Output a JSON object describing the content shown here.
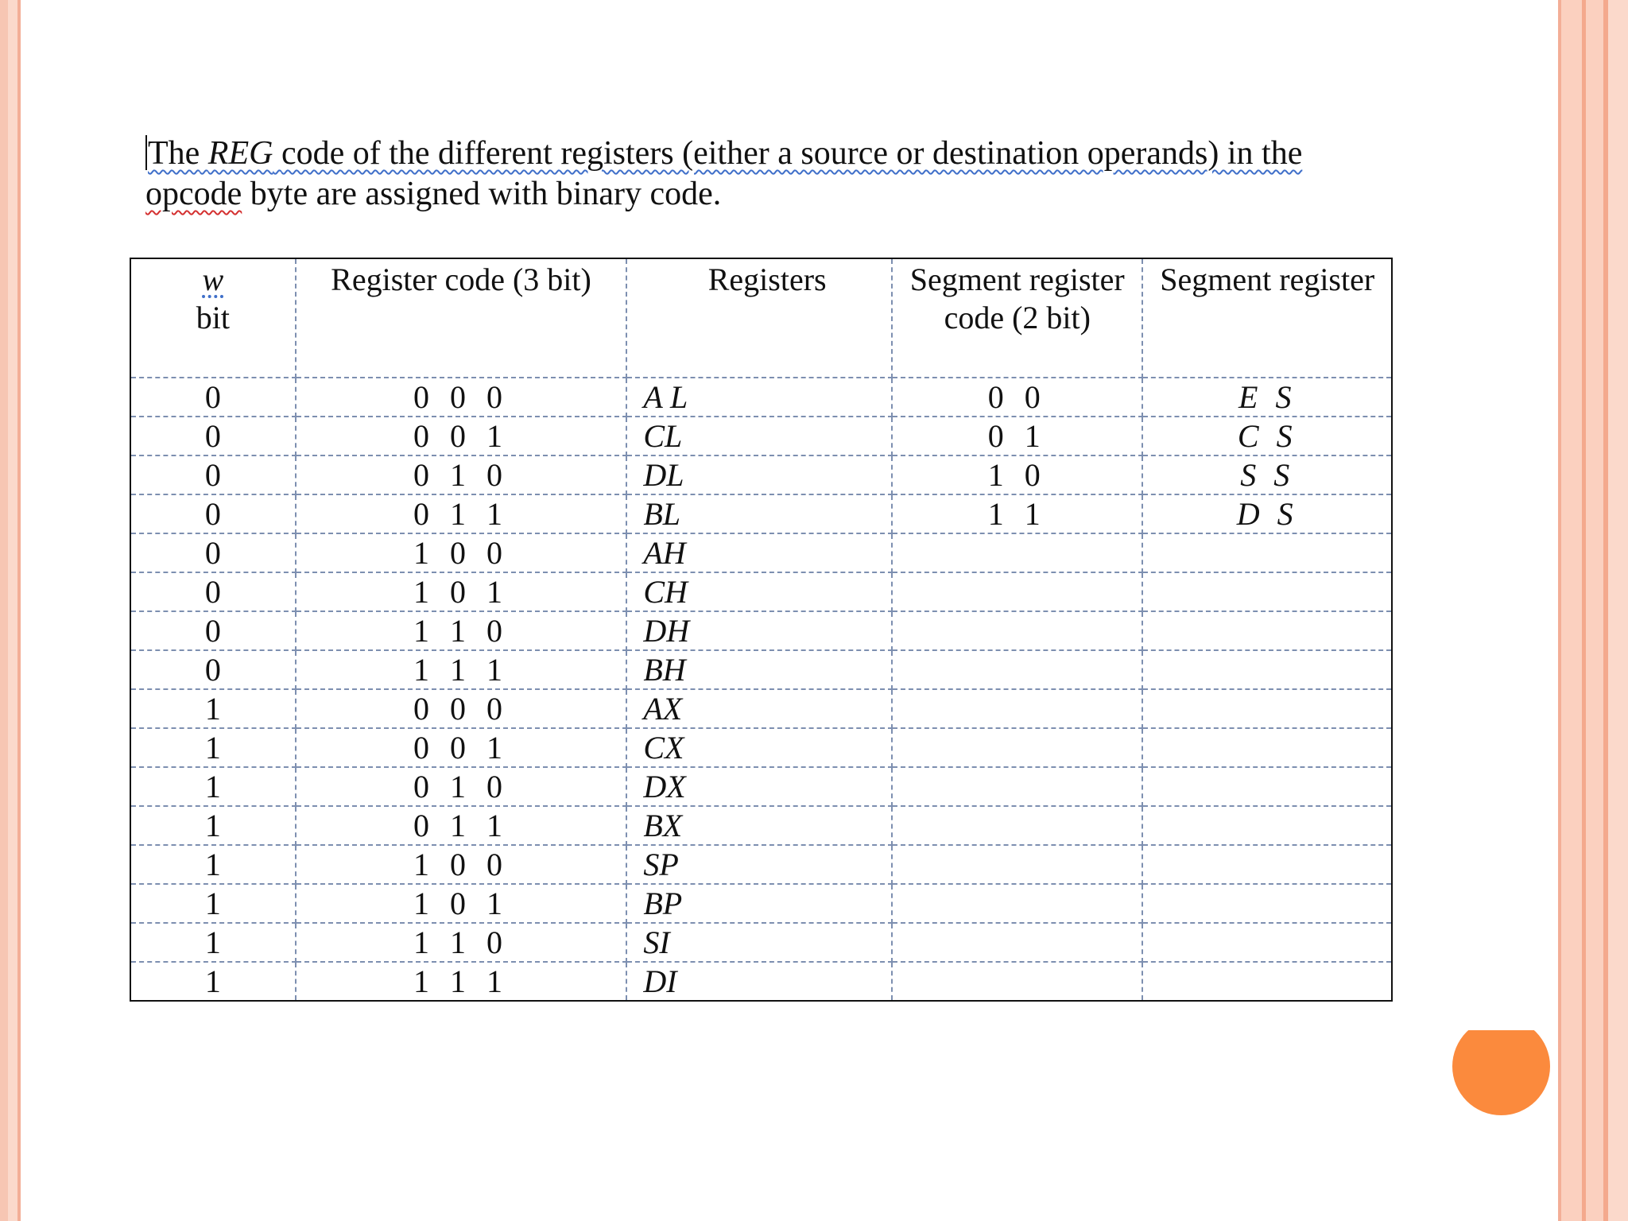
{
  "intro": {
    "word_the": "The",
    "word_reg": "REG",
    "line1_rest": "code of the different registers (either a source or destination operands) in the",
    "word_opcode": "opcode",
    "line2_rest": "byte are assigned with binary code."
  },
  "table": {
    "headers": {
      "w": "w",
      "w_suffix": "bit",
      "reg_code": "Register code (3 bit)",
      "registers": "Registers",
      "seg_code": "Segment register code (2 bit)",
      "seg_reg": "Segment register"
    },
    "rows": [
      {
        "w": "0",
        "code": "0 0 0",
        "reg": "A L",
        "seg_code": "0 0",
        "seg": "E S"
      },
      {
        "w": "0",
        "code": "0 0 1",
        "reg": "CL",
        "seg_code": "0 1",
        "seg": "C S"
      },
      {
        "w": "0",
        "code": "0 1 0",
        "reg": "DL",
        "seg_code": "1 0",
        "seg": "S S"
      },
      {
        "w": "0",
        "code": "0 1 1",
        "reg": "BL",
        "seg_code": "1 1",
        "seg": "D S"
      },
      {
        "w": "0",
        "code": "1 0 0",
        "reg": "AH",
        "seg_code": "",
        "seg": ""
      },
      {
        "w": "0",
        "code": "1 0 1",
        "reg": "CH",
        "seg_code": "",
        "seg": ""
      },
      {
        "w": "0",
        "code": "1 1 0",
        "reg": "DH",
        "seg_code": "",
        "seg": ""
      },
      {
        "w": "0",
        "code": "1 1 1",
        "reg": "BH",
        "seg_code": "",
        "seg": ""
      },
      {
        "w": "1",
        "code": "0 0 0",
        "reg": "AX",
        "seg_code": "",
        "seg": ""
      },
      {
        "w": "1",
        "code": "0 0 1",
        "reg": "CX",
        "seg_code": "",
        "seg": ""
      },
      {
        "w": "1",
        "code": "0 1 0",
        "reg": "DX",
        "seg_code": "",
        "seg": ""
      },
      {
        "w": "1",
        "code": "0 1 1",
        "reg": "BX",
        "seg_code": "",
        "seg": ""
      },
      {
        "w": "1",
        "code": "1 0 0",
        "reg": "SP",
        "seg_code": "",
        "seg": ""
      },
      {
        "w": "1",
        "code": "1 0 1",
        "reg": "BP",
        "seg_code": "",
        "seg": ""
      },
      {
        "w": "1",
        "code": "1 1 0",
        "reg": "SI",
        "seg_code": "",
        "seg": ""
      },
      {
        "w": "1",
        "code": "1 1 1",
        "reg": "DI",
        "seg_code": "",
        "seg": ""
      }
    ]
  },
  "colors": {
    "accent_dot": "#fb8a3d",
    "border_stripe": "#fbd0bf"
  }
}
